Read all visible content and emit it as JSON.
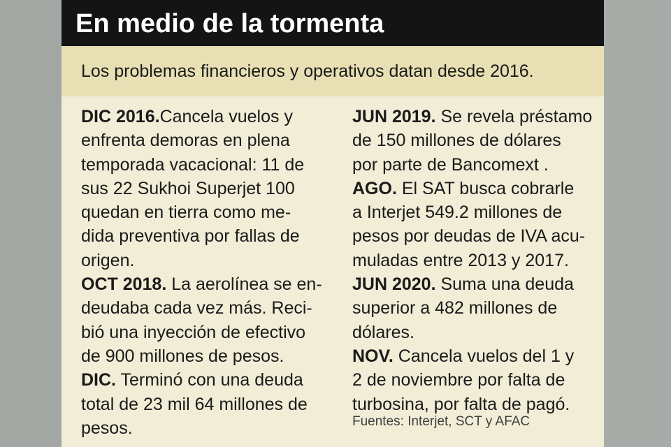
{
  "header": {
    "title": "En medio de la tormenta"
  },
  "subtitle": "Los problemas financieros y operativos datan desde 2016.",
  "left_column": [
    {
      "date": "DIC 2016.",
      "first": "Cancela vuelos y",
      "lines": [
        "enfrenta demoras en plena",
        "temporada vacacional: 11 de",
        "sus 22 Sukhoi Superjet 100",
        "quedan en tierra como me-",
        "dida preventiva por fallas de",
        "origen."
      ]
    },
    {
      "date": "OCT 2018.",
      "first": " La aerolínea se en-",
      "lines": [
        "deudaba cada vez más. Reci-",
        "bió una inyección de efectivo",
        "de 900 millones de pesos."
      ]
    },
    {
      "date": "DIC.",
      "first": " Terminó con una deuda",
      "lines": [
        "total de 23 mil 64 millones de",
        "pesos."
      ]
    }
  ],
  "right_column": [
    {
      "date": "JUN 2019.",
      "first": " Se revela préstamo",
      "lines": [
        "de 150 millones de dólares",
        "por parte de Bancomext ."
      ]
    },
    {
      "date": "AGO.",
      "first": " El SAT busca cobrarle",
      "lines": [
        "a Interjet 549.2 millones de",
        "pesos por deudas de IVA acu-",
        "muladas entre 2013 y 2017."
      ]
    },
    {
      "date": "JUN 2020.",
      "first": " Suma una deuda",
      "lines": [
        "superior a 482 millones de",
        "dólares."
      ]
    },
    {
      "date": "NOV.",
      "first": " Cancela vuelos del 1 y",
      "lines": [
        "2 de noviembre por falta de",
        "turbosina, por falta de pagó."
      ]
    }
  ],
  "sources": "Fuentes: Interjet, SCT y AFAC",
  "colors": {
    "header_bg": "#141414",
    "subtitle_band": "#e8e0b4",
    "card_bg": "#f1edd6",
    "outer_bg": "#a5a9a6"
  }
}
